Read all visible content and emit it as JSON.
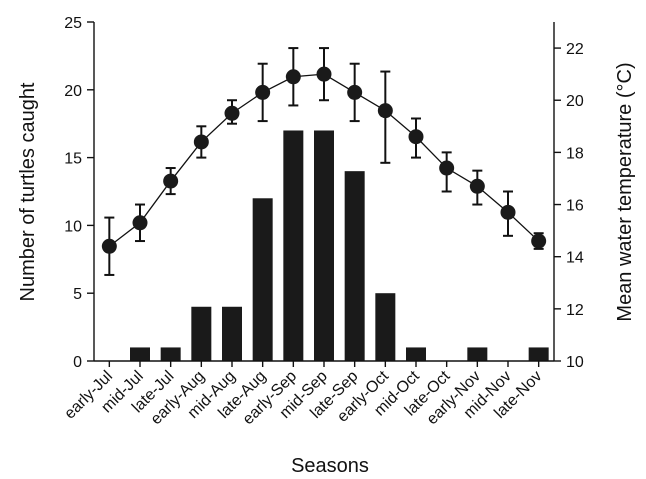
{
  "chart_data": {
    "type": "bar",
    "title": "",
    "xlabel": "Seasons",
    "ylabel": "Number of turtles caught",
    "y2label": "Mean water temperature (°C)",
    "categories": [
      "early-Jul",
      "mid-Jul",
      "late-Jul",
      "early-Aug",
      "mid-Aug",
      "late-Aug",
      "early-Sep",
      "mid-Sep",
      "late-Sep",
      "early-Oct",
      "mid-Oct",
      "late-Oct",
      "early-Nov",
      "mid-Nov",
      "late-Nov"
    ],
    "ylim": [
      0,
      25
    ],
    "y2lim": [
      10,
      23
    ],
    "yticks": [
      0,
      5,
      10,
      15,
      20,
      25
    ],
    "y2ticks": [
      10,
      12,
      14,
      16,
      18,
      20,
      22
    ],
    "series": [
      {
        "type": "bar",
        "axis": "left",
        "color": "#1a1a1a",
        "values": [
          0,
          1,
          1,
          4,
          4,
          12,
          17,
          17,
          14,
          5,
          1,
          0,
          1,
          0,
          1
        ]
      },
      {
        "type": "line",
        "axis": "right",
        "color": "#111111",
        "values": [
          14.4,
          15.3,
          16.9,
          18.4,
          19.5,
          20.3,
          20.9,
          21.0,
          20.3,
          19.6,
          18.6,
          17.4,
          16.7,
          15.7,
          14.6
        ],
        "error_low": [
          13.3,
          14.6,
          16.4,
          17.8,
          19.1,
          19.2,
          19.8,
          20.0,
          19.2,
          17.6,
          17.8,
          16.5,
          16.0,
          14.8,
          14.3
        ],
        "error_high": [
          15.5,
          16.0,
          17.4,
          19.0,
          20.0,
          21.4,
          22.0,
          22.0,
          21.4,
          21.1,
          19.3,
          18.0,
          17.3,
          16.5,
          14.9
        ]
      }
    ]
  }
}
